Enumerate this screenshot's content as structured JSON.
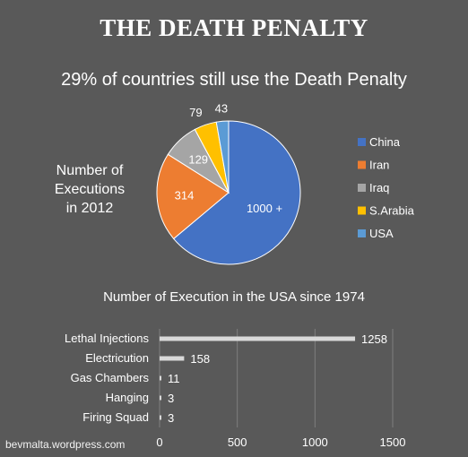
{
  "title": "THE DEATH PENALTY",
  "subtitle": "29% of countries still use the Death Penalty",
  "watermark": "bevmalta.wordpress.com",
  "chart_data": [
    {
      "type": "pie",
      "side_label": "Number of Executions in 2012",
      "side_label_lines": [
        "Number of",
        "Executions",
        "in 2012"
      ],
      "slices": [
        {
          "name": "China",
          "value": 1000,
          "label": "1000 +",
          "color": "#4472c4"
        },
        {
          "name": "Iran",
          "value": 314,
          "label": "314",
          "color": "#ed7d31"
        },
        {
          "name": "Iraq",
          "value": 129,
          "label": "129",
          "color": "#a5a5a5"
        },
        {
          "name": "S.Arabia",
          "value": 79,
          "label": "79",
          "color": "#ffc000"
        },
        {
          "name": "USA",
          "value": 43,
          "label": "43",
          "color": "#5b9bd5"
        }
      ],
      "legend_position": "right"
    },
    {
      "type": "bar",
      "orientation": "horizontal",
      "title": "Number of Execution in the USA since 1974",
      "categories": [
        "Lethal Injections",
        "Electricution",
        "Gas Chambers",
        "Hanging",
        "Firing Squad"
      ],
      "values": [
        1258,
        158,
        11,
        3,
        3
      ],
      "xlim": [
        0,
        1500
      ],
      "xticks": [
        0,
        500,
        1000,
        1500
      ],
      "bar_color": "#d9d9d9",
      "grid": true
    }
  ]
}
